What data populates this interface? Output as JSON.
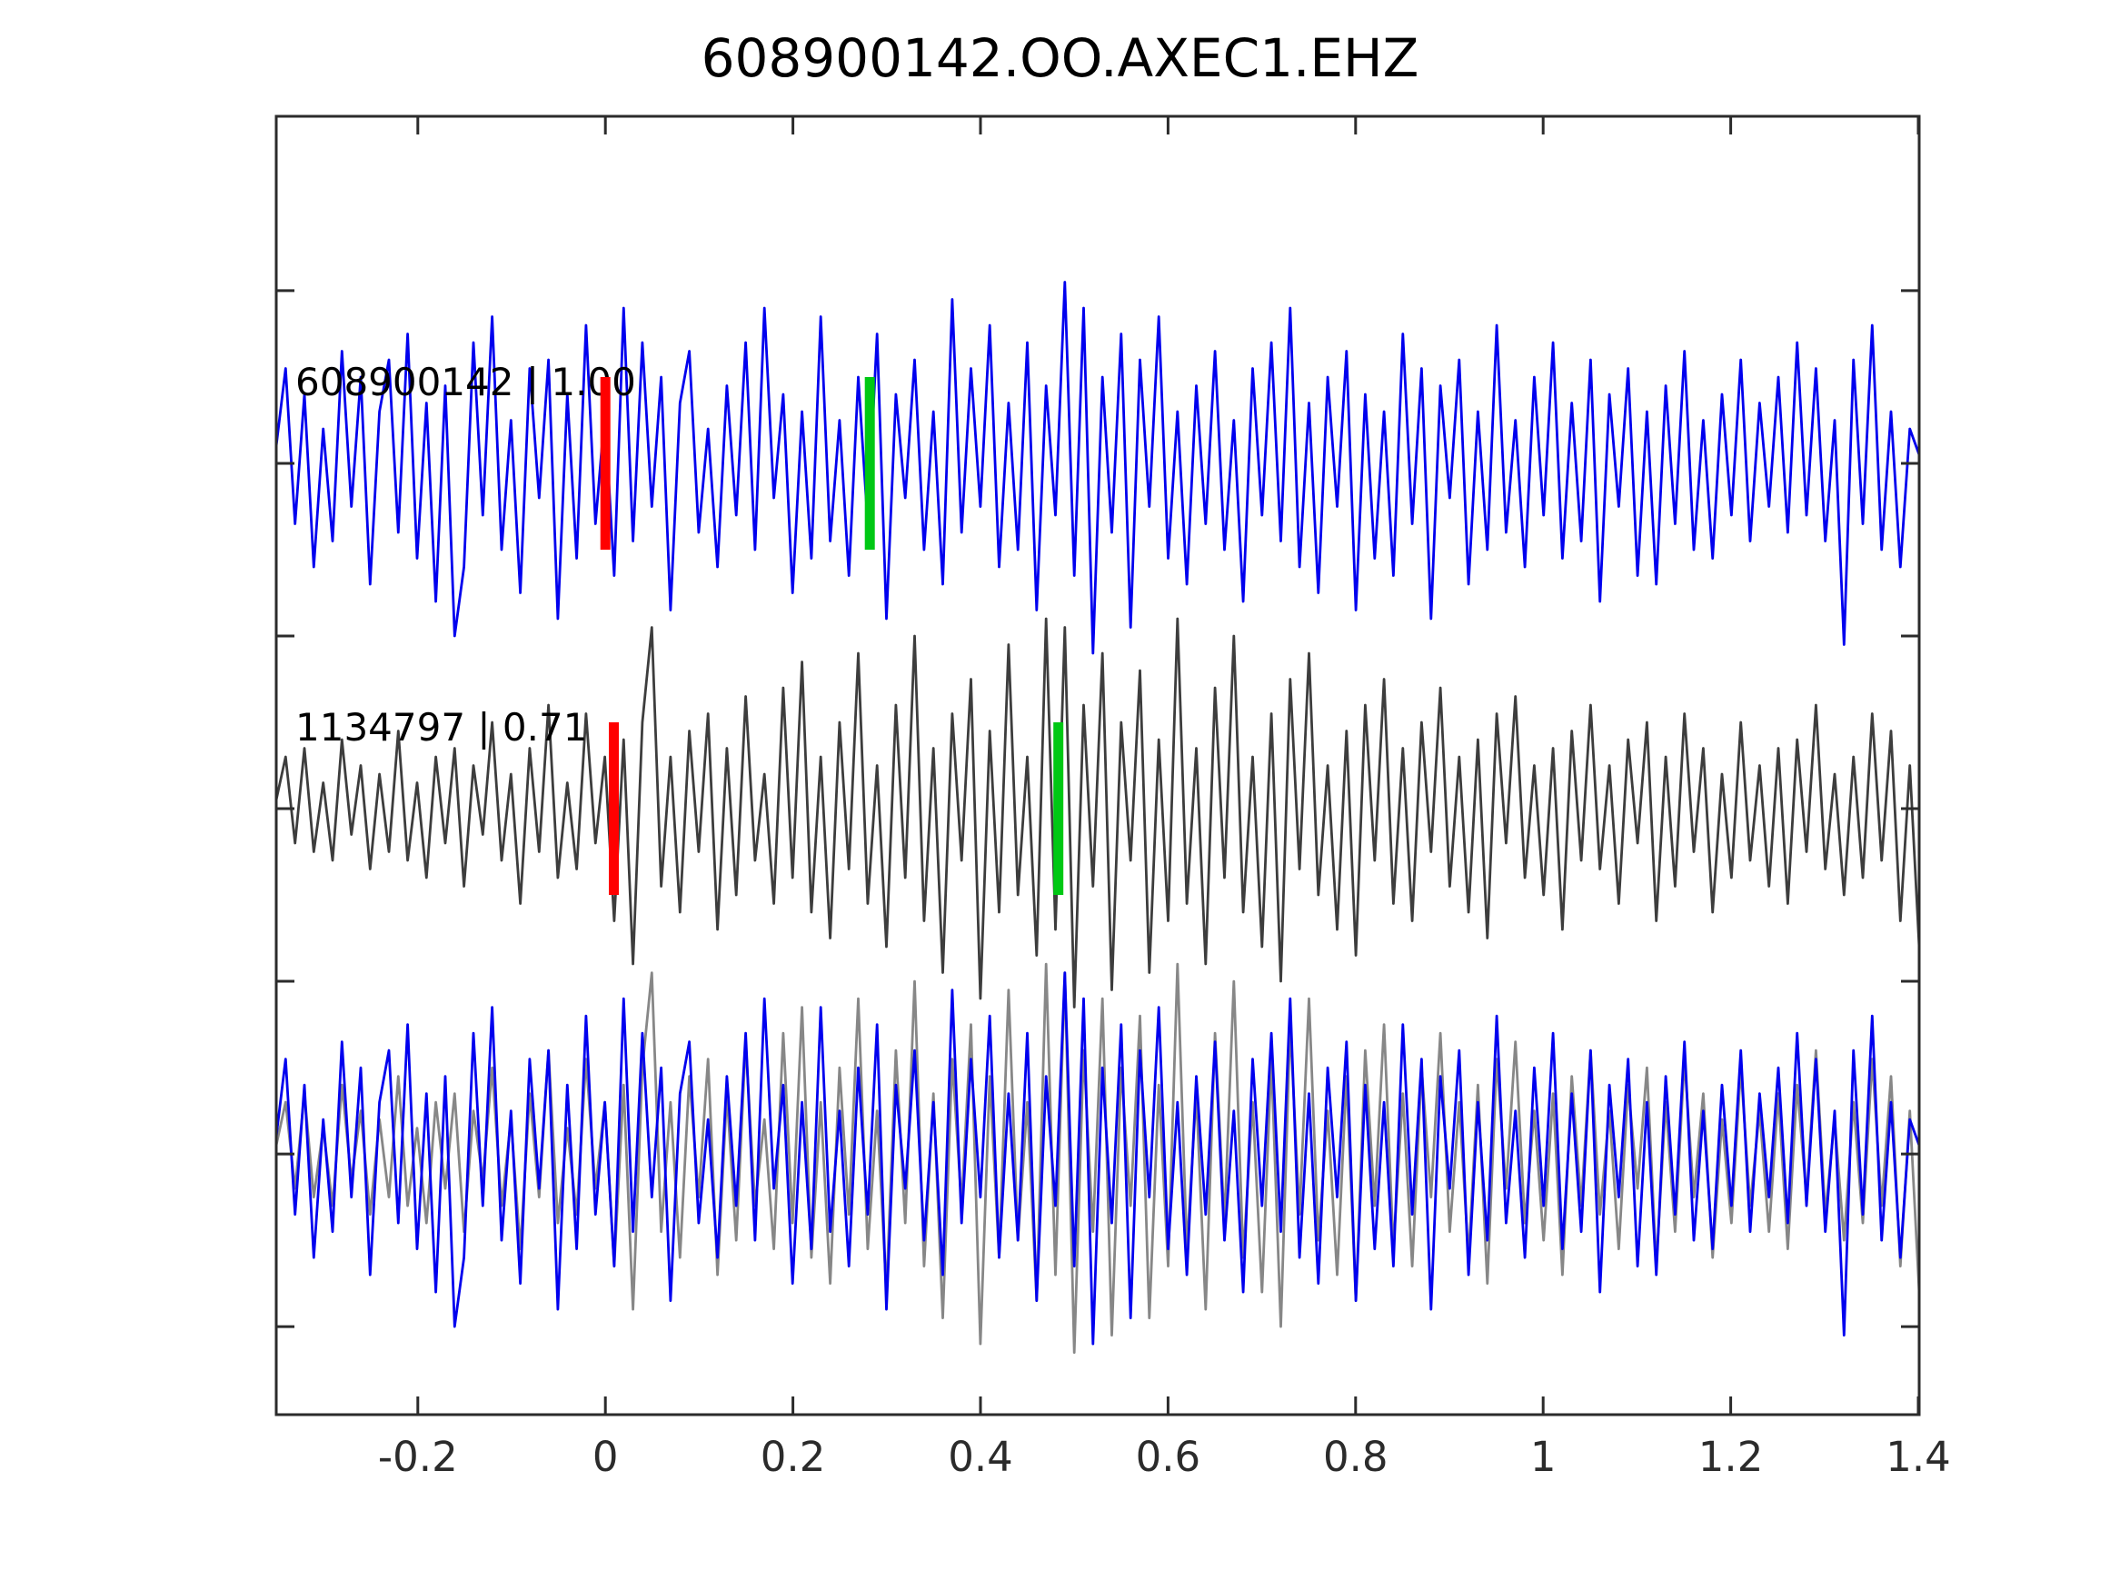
{
  "figure": {
    "title": "608900142.OO.AXEC1.EHZ"
  },
  "chart_data": {
    "type": "line",
    "title": "608900142.OO.AXEC1.EHZ",
    "xlabel": "",
    "ylabel": "",
    "grid": false,
    "legend": "none",
    "xlim": [
      -0.351,
      1.401
    ],
    "ylim_offsets": [
      -1.005,
      2.755
    ],
    "x_tick_labels": [
      "-0.2",
      "0",
      "0.2",
      "0.4",
      "0.6",
      "0.8",
      "1",
      "1.2",
      "1.4"
    ],
    "x_tick_values": [
      -0.2,
      0,
      0.2,
      0.4,
      0.6,
      0.8,
      1.0,
      1.2,
      1.4
    ],
    "y_tick_offsets": [
      -0.5,
      0,
      0.5,
      1.0,
      1.5,
      2.0,
      2.5
    ],
    "axis_color": "#2b2b2b",
    "background": "#ffffff",
    "sample_interval": 0.01,
    "t_start": -0.351,
    "traces": [
      {
        "name": "template-trace",
        "label": "608900142 | 1.00",
        "color": "#0000ee",
        "offset": 0,
        "picks": [
          {
            "kind": "template-pick",
            "color": "#ff0000",
            "t": 0.0
          },
          {
            "kind": "detection-pick",
            "color": "#00c814",
            "t": 0.282
          }
        ],
        "values": [
          10,
          55,
          -35,
          40,
          -60,
          20,
          -45,
          65,
          -25,
          50,
          -70,
          30,
          60,
          -40,
          75,
          -55,
          35,
          -80,
          45,
          -100,
          -60,
          70,
          -30,
          85,
          -50,
          25,
          -75,
          55,
          -20,
          60,
          -90,
          40,
          -55,
          80,
          -35,
          30,
          -65,
          90,
          -45,
          70,
          -25,
          50,
          -85,
          35,
          65,
          -40,
          20,
          -60,
          45,
          -30,
          70,
          -50,
          90,
          -20,
          40,
          -75,
          30,
          -55,
          85,
          -45,
          25,
          -65,
          50,
          -35,
          75,
          -90,
          40,
          -20,
          60,
          -50,
          30,
          -70,
          95,
          -40,
          55,
          -25,
          80,
          -60,
          35,
          -50,
          70,
          -85,
          45,
          -30,
          105,
          -65,
          90,
          -110,
          50,
          -40,
          75,
          -95,
          60,
          -25,
          85,
          -55,
          30,
          -70,
          45,
          -35,
          65,
          -50,
          25,
          -80,
          55,
          -30,
          70,
          -45,
          90,
          -60,
          35,
          -75,
          50,
          -25,
          65,
          -85,
          40,
          -55,
          30,
          -65,
          75,
          -35,
          55,
          -90,
          45,
          -20,
          60,
          -70,
          30,
          -50,
          80,
          -40,
          25,
          -60,
          50,
          -30,
          70,
          -55,
          35,
          -45,
          60,
          -80,
          40,
          -25,
          55,
          -65,
          30,
          -70,
          45,
          -35,
          65,
          -50,
          25,
          -55,
          40,
          -30,
          60,
          -45,
          35,
          -25,
          50,
          -40,
          70,
          -30,
          55,
          -45,
          25,
          -105,
          60,
          -35,
          80,
          -50,
          30,
          -60,
          20,
          5
        ]
      },
      {
        "name": "detection-trace",
        "label": "1134797 | 0.71",
        "color": "#3d3d3d",
        "offset": 1,
        "picks": [
          {
            "kind": "template-pick",
            "color": "#ff0000",
            "t": 0.009
          },
          {
            "kind": "detection-pick",
            "color": "#00c814",
            "t": 0.483
          }
        ],
        "values": [
          5,
          30,
          -20,
          35,
          -25,
          15,
          -30,
          40,
          -15,
          25,
          -35,
          20,
          -25,
          45,
          -30,
          15,
          -40,
          30,
          -20,
          35,
          -45,
          25,
          -15,
          50,
          -30,
          20,
          -55,
          35,
          -25,
          60,
          -40,
          15,
          -35,
          55,
          -20,
          30,
          -65,
          40,
          -90,
          50,
          105,
          -45,
          30,
          -60,
          45,
          -25,
          55,
          -70,
          35,
          -50,
          65,
          -30,
          20,
          -55,
          70,
          -40,
          85,
          -60,
          30,
          -75,
          50,
          -35,
          90,
          -55,
          25,
          -80,
          60,
          -40,
          100,
          -65,
          35,
          -95,
          55,
          -30,
          75,
          -110,
          45,
          -60,
          95,
          -50,
          30,
          -85,
          110,
          -70,
          105,
          -115,
          60,
          -45,
          90,
          -105,
          50,
          -30,
          80,
          -95,
          40,
          -65,
          110,
          -55,
          35,
          -90,
          70,
          -40,
          100,
          -60,
          30,
          -80,
          55,
          -100,
          75,
          -35,
          90,
          -50,
          25,
          -70,
          45,
          -85,
          60,
          -30,
          75,
          -55,
          35,
          -65,
          50,
          -25,
          70,
          -45,
          30,
          -60,
          40,
          -75,
          55,
          -20,
          65,
          -40,
          25,
          -50,
          35,
          -70,
          45,
          -30,
          60,
          -35,
          25,
          -55,
          40,
          -20,
          50,
          -65,
          30,
          -45,
          55,
          -25,
          35,
          -60,
          20,
          -40,
          50,
          -30,
          25,
          -45,
          35,
          -55,
          40,
          -25,
          60,
          -35,
          20,
          -50,
          30,
          -40,
          55,
          -30,
          45,
          -65,
          25,
          -80
        ]
      },
      {
        "name": "overlay-detection-trace",
        "label": "",
        "color": "#878787",
        "offset": 2,
        "picks": [],
        "values_from": 1
      },
      {
        "name": "overlay-template-trace",
        "label": "",
        "color": "#0000ee",
        "offset": 2,
        "picks": [],
        "values_from": 0
      }
    ]
  }
}
